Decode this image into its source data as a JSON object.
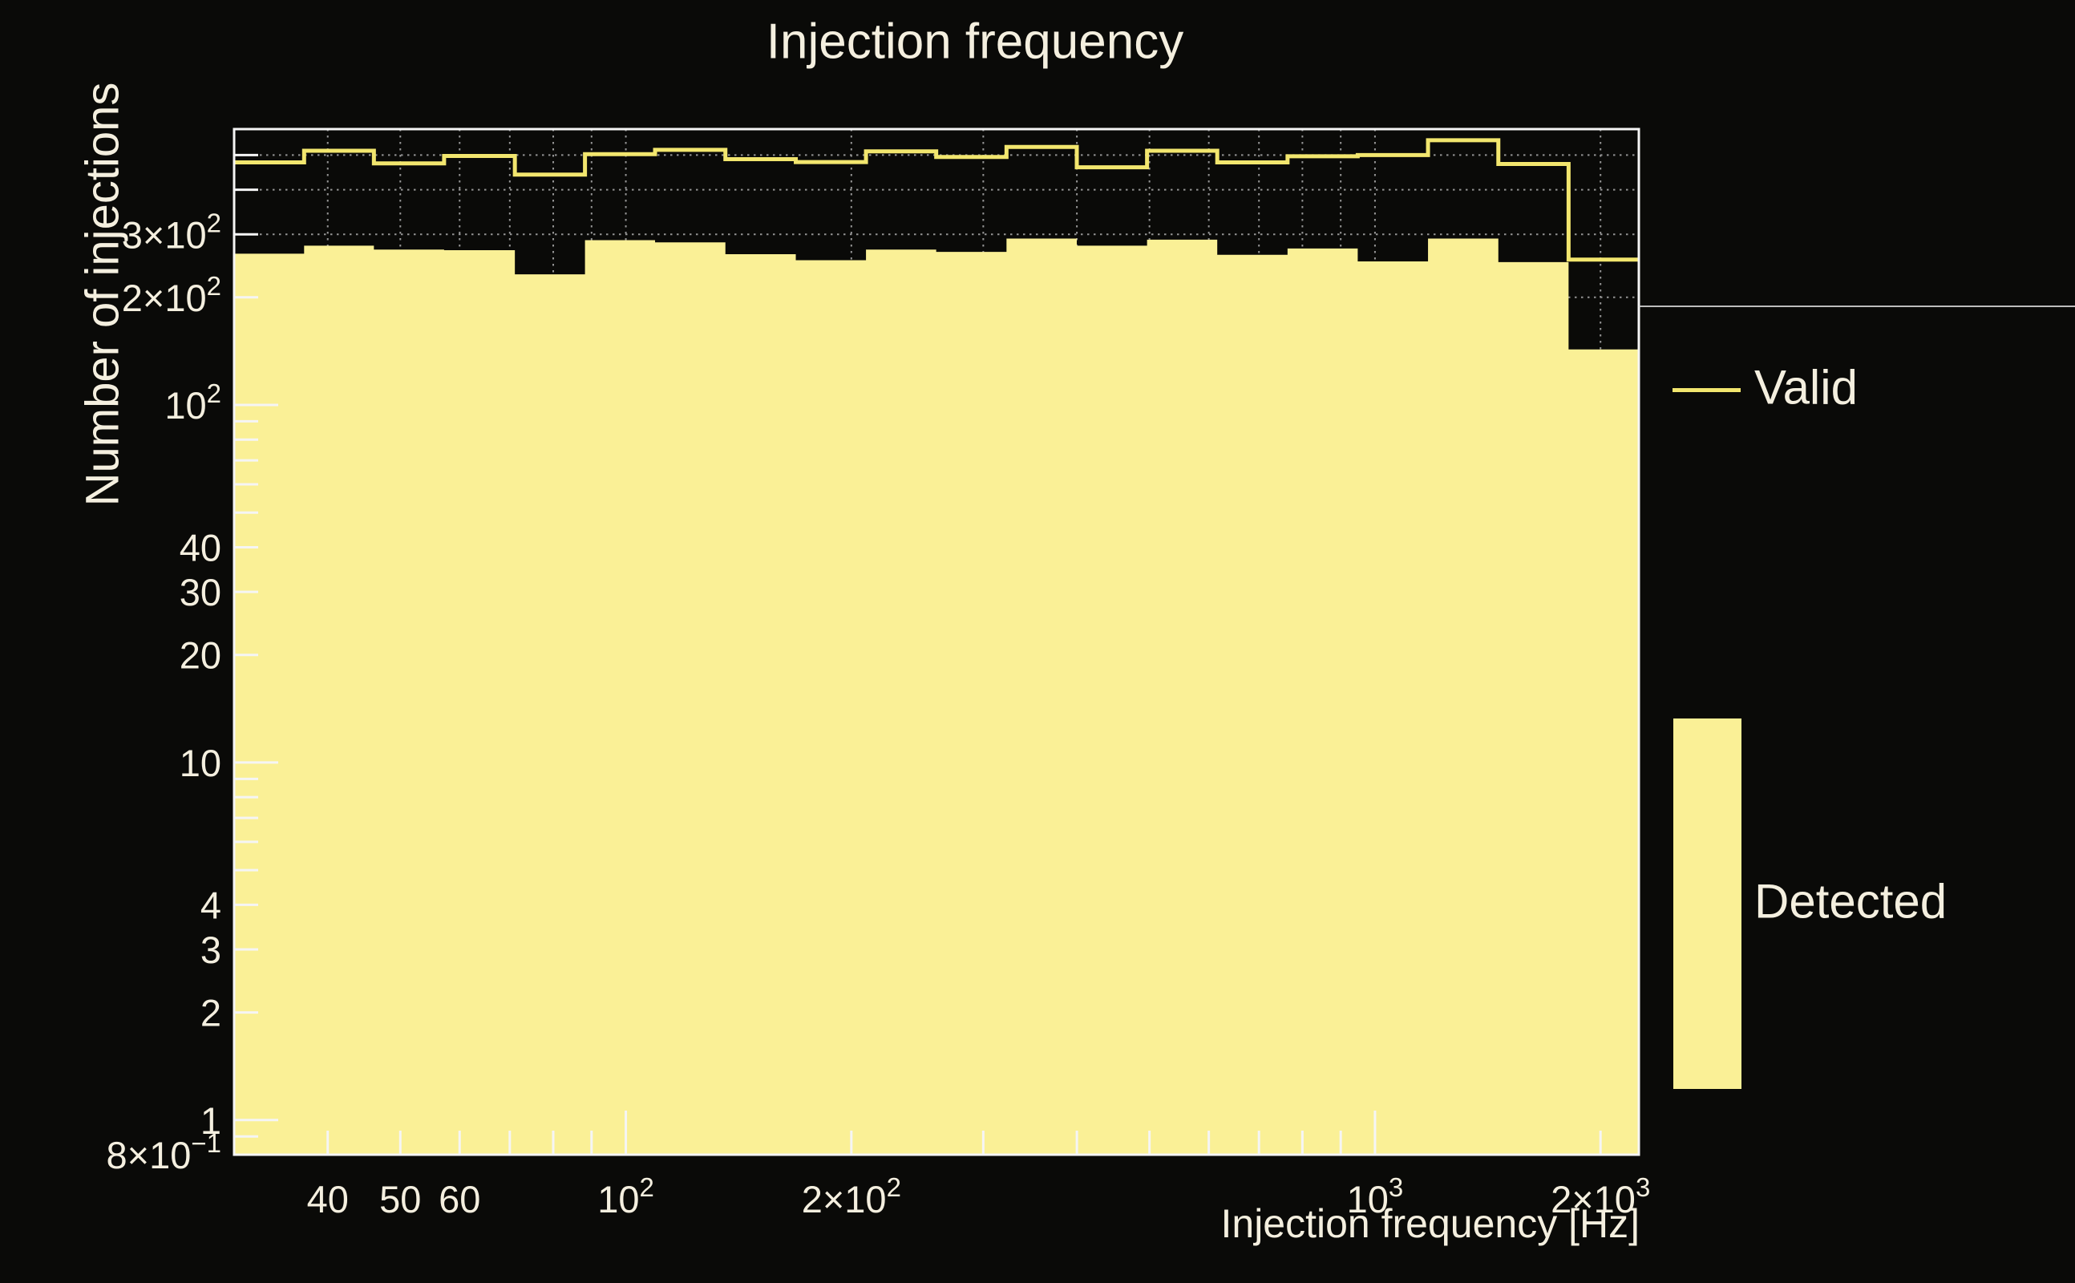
{
  "title": "Injection frequency",
  "colors": {
    "background": "#0a0a08",
    "text": "#f4efdf",
    "frame": "#f5f5f5",
    "grid": "#949494",
    "valid_line": "#f2e66e",
    "detected_fill": "#faf096"
  },
  "legend": {
    "valid_label": "Valid",
    "detected_label": "Detected",
    "position": "right"
  },
  "chart_data": {
    "type": "bar",
    "subtype": "step-histogram-log-log",
    "title": "Injection frequency",
    "xlabel": "Injection frequency [Hz]",
    "ylabel": "Number of injections",
    "xscale": "log",
    "yscale": "log",
    "xlim": [
      30,
      2250
    ],
    "ylim": [
      0.8,
      591
    ],
    "grid": true,
    "legend_position": "right-outside",
    "bin_edges_hz": [
      30,
      37.2,
      46.1,
      57.2,
      71.1,
      88.2,
      109.4,
      135.8,
      168.6,
      209.2,
      259.6,
      322.2,
      399.9,
      496.3,
      615.8,
      764.3,
      948.3,
      1177,
      1461,
      1813,
      2250
    ],
    "series": [
      {
        "name": "Valid",
        "style": "line",
        "values": [
          477,
          514,
          474,
          497,
          441,
          503,
          517,
          487,
          478,
          512,
          494,
          527,
          462,
          514,
          477,
          496,
          500,
          550,
          472,
          255
        ]
      },
      {
        "name": "Detected",
        "style": "fill",
        "values": [
          265,
          279,
          272,
          271,
          232,
          289,
          285,
          264,
          254,
          272,
          268,
          292,
          279,
          290,
          263,
          274,
          252,
          292,
          251,
          143
        ]
      }
    ],
    "x_axis": {
      "labeled_ticks": [
        {
          "value": 40,
          "mant": "40"
        },
        {
          "value": 50,
          "mant": "50"
        },
        {
          "value": 60,
          "mant": "60"
        },
        {
          "value": 100,
          "mant": "10",
          "exp": "2"
        },
        {
          "value": 200,
          "mant": "2×10",
          "exp": "2"
        },
        {
          "value": 1000,
          "mant": "10",
          "exp": "3"
        },
        {
          "value": 2000,
          "mant": "2×10",
          "exp": "3"
        }
      ],
      "major_ticks": [
        100,
        1000
      ],
      "minor_ticks": [
        40,
        50,
        60,
        70,
        80,
        90,
        200,
        300,
        400,
        500,
        600,
        700,
        800,
        900,
        2000
      ]
    },
    "y_axis": {
      "labeled_ticks": [
        {
          "value": 0.8,
          "mant": "8×10",
          "exp": "−1"
        },
        {
          "value": 1,
          "mant": "1"
        },
        {
          "value": 2,
          "mant": "2"
        },
        {
          "value": 3,
          "mant": "3"
        },
        {
          "value": 4,
          "mant": "4"
        },
        {
          "value": 10,
          "mant": "10"
        },
        {
          "value": 20,
          "mant": "20"
        },
        {
          "value": 30,
          "mant": "30"
        },
        {
          "value": 40,
          "mant": "40"
        },
        {
          "value": 100,
          "mant": "10",
          "exp": "2"
        },
        {
          "value": 200,
          "mant": "2×10",
          "exp": "2"
        },
        {
          "value": 300,
          "mant": "3×10",
          "exp": "2"
        }
      ],
      "major_ticks": [
        1,
        10,
        100
      ],
      "minor_ticks": [
        0.9,
        2,
        3,
        4,
        5,
        6,
        7,
        8,
        9,
        20,
        30,
        40,
        50,
        60,
        70,
        80,
        90,
        200,
        300,
        400,
        500
      ]
    }
  }
}
